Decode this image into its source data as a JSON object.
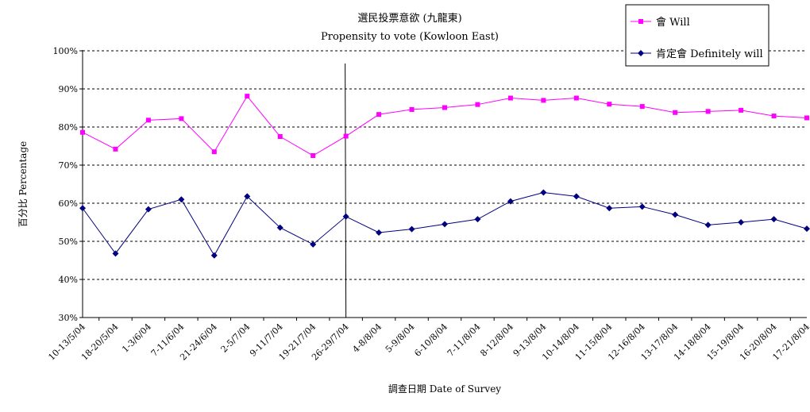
{
  "chart_data": {
    "type": "line",
    "title": "選民投票意欲 (九龍東)",
    "subtitle": "Propensity to vote (Kowloon East)",
    "xlabel": "調查日期 Date of Survey",
    "ylabel": "百分比 Percentage",
    "ylim": [
      30,
      100
    ],
    "yticks": [
      "30%",
      "40%",
      "50%",
      "60%",
      "70%",
      "80%",
      "90%",
      "100%"
    ],
    "grid": "horizontal dashed",
    "legend_position": "top-right",
    "categories": [
      "10-13/5/04",
      "18-20/5/04",
      "1-3/6/04",
      "7-11/6/04",
      "21-24/6/04",
      "2-5/7/04",
      "9-11/7/04",
      "19-21/7/04",
      "26-29/7/04",
      "4-8/8/04",
      "5-9/8/04",
      "6-10/8/04",
      "7-11/8/04",
      "8-12/8/04",
      "9-13/8/04",
      "10-14/8/04",
      "11-15/8/04",
      "12-16/8/04",
      "13-17/8/04",
      "14-18/8/04",
      "15-19/8/04",
      "16-20/8/04",
      "17-21/8/04"
    ],
    "divider_after_index": 8,
    "series": [
      {
        "name": "會 Will",
        "color": "#ff00ff",
        "marker": "square",
        "values": [
          78.6,
          74.2,
          81.8,
          82.2,
          73.5,
          88.1,
          77.5,
          72.5,
          77.6,
          83.3,
          84.6,
          85.1,
          85.9,
          87.6,
          87.0,
          87.6,
          86.0,
          85.4,
          83.8,
          84.1,
          84.4,
          82.9,
          82.4
        ]
      },
      {
        "name": "肯定會 Definitely will",
        "color": "#000080",
        "marker": "diamond",
        "values": [
          58.7,
          46.8,
          58.4,
          61.0,
          46.3,
          61.8,
          53.6,
          49.2,
          56.5,
          52.3,
          53.2,
          54.5,
          55.8,
          60.5,
          62.8,
          61.8,
          58.7,
          59.1,
          57.0,
          54.3,
          55.0,
          55.8,
          53.3
        ]
      }
    ]
  }
}
